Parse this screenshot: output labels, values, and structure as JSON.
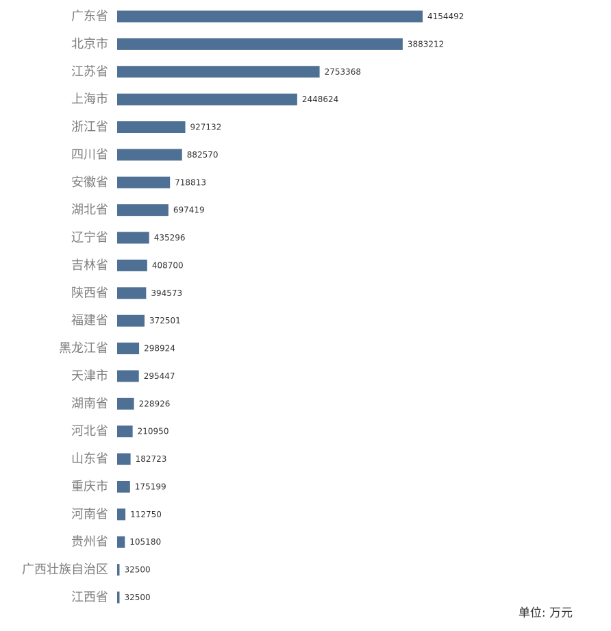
{
  "chart_data": {
    "type": "bar",
    "orientation": "horizontal",
    "categories": [
      "广东省",
      "北京市",
      "江苏省",
      "上海市",
      "浙江省",
      "四川省",
      "安徽省",
      "湖北省",
      "辽宁省",
      "吉林省",
      "陕西省",
      "福建省",
      "黑龙江省",
      "天津市",
      "湖南省",
      "河北省",
      "山东省",
      "重庆市",
      "河南省",
      "贵州省",
      "广西壮族自治区",
      "江西省"
    ],
    "values": [
      4154492,
      3883212,
      2753368,
      2448624,
      927132,
      882570,
      718813,
      697419,
      435296,
      408700,
      394573,
      372501,
      298924,
      295447,
      228926,
      210950,
      182723,
      175199,
      112750,
      105180,
      32500,
      32500
    ],
    "xlim": [
      0,
      4154492
    ],
    "bar_color": "#4e7094",
    "grid": false,
    "legend": "none",
    "data_labels": true
  },
  "unit_note": "单位: 万元"
}
